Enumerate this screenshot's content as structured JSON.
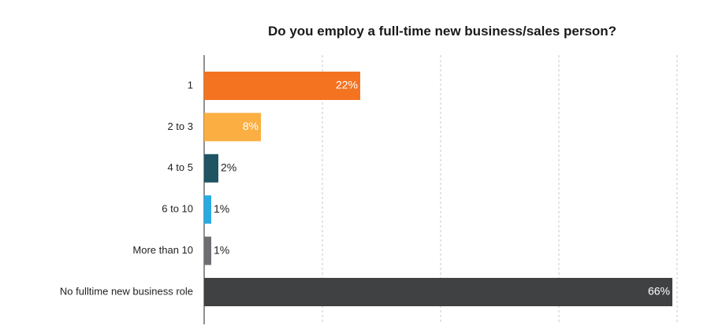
{
  "chart_data": {
    "type": "bar",
    "orientation": "horizontal",
    "title": "Do you employ a full-time new business/sales person?",
    "categories": [
      "1",
      "2 to 3",
      "4 to 5",
      "6 to 10",
      "More than 10",
      "No fulltime new business role"
    ],
    "values": [
      22,
      8,
      2,
      1,
      1,
      66
    ],
    "value_labels": [
      "22%",
      "8%",
      "2%",
      "1%",
      "1%",
      "66%"
    ],
    "colors": [
      "#f47321",
      "#fbae42",
      "#1f5462",
      "#29aae1",
      "#6d6e71",
      "#3f4143"
    ],
    "xlim": [
      0,
      66
    ],
    "grid": "vertical dashed",
    "legend": "none"
  }
}
